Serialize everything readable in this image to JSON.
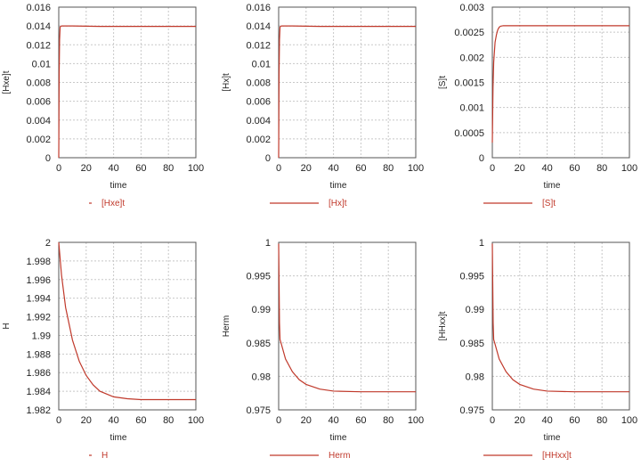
{
  "colors": {
    "series": "#c0392b",
    "grid": "#c8c8c8",
    "axis": "#555555"
  },
  "chart_data": [
    {
      "type": "line",
      "xlabel": "time",
      "ylabel": "[Hxe]t",
      "xlim": [
        0,
        100
      ],
      "ylim": [
        0,
        0.016
      ],
      "xticks": [
        "0",
        "20",
        "40",
        "60",
        "80",
        "100"
      ],
      "yticks": [
        "0",
        "0.002",
        "0.004",
        "0.006",
        "0.008",
        "0.01",
        "0.012",
        "0.014",
        "0.016"
      ],
      "grid": true,
      "legend": "bottom",
      "series": [
        {
          "name": "[Hxe]t",
          "x": [
            0,
            0.3,
            0.6,
            1,
            2,
            4,
            10,
            30,
            60,
            100
          ],
          "y": [
            0.0,
            0.009,
            0.0125,
            0.0139,
            0.014,
            0.014,
            0.014,
            0.01395,
            0.01395,
            0.01395
          ]
        }
      ]
    },
    {
      "type": "line",
      "xlabel": "time",
      "ylabel": "[Hx]t",
      "xlim": [
        0,
        100
      ],
      "ylim": [
        0,
        0.016
      ],
      "xticks": [
        "0",
        "20",
        "40",
        "60",
        "80",
        "100"
      ],
      "yticks": [
        "0",
        "0.002",
        "0.004",
        "0.006",
        "0.008",
        "0.01",
        "0.012",
        "0.014",
        "0.016"
      ],
      "grid": true,
      "legend": "bottom",
      "series": [
        {
          "name": "[Hx]t",
          "x": [
            0,
            0.3,
            0.6,
            1,
            2,
            4,
            10,
            30,
            60,
            100
          ],
          "y": [
            0.0,
            0.009,
            0.0125,
            0.0139,
            0.014,
            0.014,
            0.014,
            0.01395,
            0.01395,
            0.01395
          ]
        }
      ]
    },
    {
      "type": "line",
      "xlabel": "time",
      "ylabel": "[S]t",
      "xlim": [
        0,
        100
      ],
      "ylim": [
        0,
        0.003
      ],
      "xticks": [
        "0",
        "20",
        "40",
        "60",
        "80",
        "100"
      ],
      "yticks": [
        "0",
        "0.0005",
        "0.001",
        "0.0015",
        "0.002",
        "0.0025",
        "0.003"
      ],
      "grid": true,
      "legend": "bottom",
      "series": [
        {
          "name": "[S]t",
          "x": [
            0,
            0.5,
            1,
            2,
            3,
            4,
            5,
            6,
            8,
            20,
            100
          ],
          "y": [
            0.0003,
            0.0014,
            0.0019,
            0.0023,
            0.00245,
            0.00255,
            0.0026,
            0.00262,
            0.00263,
            0.00263,
            0.00263
          ]
        }
      ]
    },
    {
      "type": "line",
      "xlabel": "time",
      "ylabel": "H",
      "xlim": [
        0,
        100
      ],
      "ylim": [
        1.982,
        2
      ],
      "xticks": [
        "0",
        "20",
        "40",
        "60",
        "80",
        "100"
      ],
      "yticks": [
        "1.982",
        "1.984",
        "1.986",
        "1.988",
        "1.99",
        "1.992",
        "1.994",
        "1.996",
        "1.998",
        "2"
      ],
      "grid": true,
      "legend": "bottom",
      "series": [
        {
          "name": "H",
          "x": [
            0,
            2,
            5,
            10,
            15,
            20,
            25,
            30,
            40,
            50,
            60,
            80,
            100
          ],
          "y": [
            2.0,
            1.9965,
            1.993,
            1.9895,
            1.9872,
            1.9857,
            1.9847,
            1.984,
            1.9834,
            1.9832,
            1.9831,
            1.9831,
            1.9831
          ]
        }
      ]
    },
    {
      "type": "line",
      "xlabel": "time",
      "ylabel": "Herm",
      "xlim": [
        0,
        100
      ],
      "ylim": [
        0.975,
        1
      ],
      "xticks": [
        "0",
        "20",
        "40",
        "60",
        "80",
        "100"
      ],
      "yticks": [
        "0.975",
        "0.98",
        "0.985",
        "0.99",
        "0.995",
        "1"
      ],
      "grid": true,
      "legend": "bottom",
      "series": [
        {
          "name": "Herm",
          "x": [
            0,
            0.3,
            0.6,
            1,
            2,
            5,
            10,
            15,
            20,
            30,
            40,
            60,
            100
          ],
          "y": [
            0.9998,
            0.994,
            0.988,
            0.9855,
            0.9848,
            0.9826,
            0.9807,
            0.9795,
            0.9788,
            0.9781,
            0.9778,
            0.9777,
            0.9777
          ]
        }
      ]
    },
    {
      "type": "line",
      "xlabel": "time",
      "ylabel": "[HHxx]t",
      "xlim": [
        0,
        100
      ],
      "ylim": [
        0.975,
        1
      ],
      "xticks": [
        "0",
        "20",
        "40",
        "60",
        "80",
        "100"
      ],
      "yticks": [
        "0.975",
        "0.98",
        "0.985",
        "0.99",
        "0.995",
        "1"
      ],
      "grid": true,
      "legend": "bottom",
      "series": [
        {
          "name": "[HHxx]t",
          "x": [
            0,
            0.3,
            0.6,
            1,
            2,
            5,
            10,
            15,
            20,
            30,
            40,
            60,
            100
          ],
          "y": [
            0.9998,
            0.994,
            0.988,
            0.9855,
            0.9848,
            0.9826,
            0.9807,
            0.9795,
            0.9788,
            0.9781,
            0.9778,
            0.9777,
            0.9777
          ]
        }
      ]
    }
  ]
}
